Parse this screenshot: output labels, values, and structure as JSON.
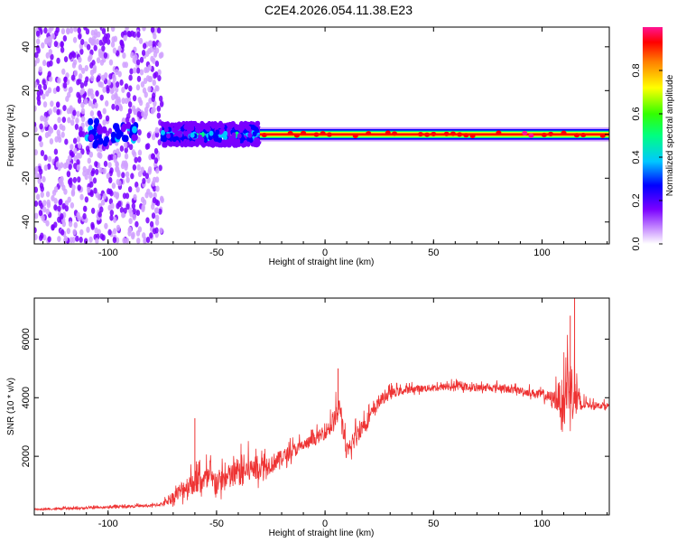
{
  "title": "C2E4.2026.054.11.38.E23",
  "chart_data": [
    {
      "type": "heatmap",
      "xlabel": "Height of straight line (km)",
      "ylabel": "Frequency (Hz)",
      "xlim": [
        -134,
        131
      ],
      "ylim": [
        -50,
        49
      ],
      "xticks": [
        -100,
        -50,
        0,
        50,
        100
      ],
      "yticks": [
        -40,
        -20,
        0,
        20,
        40
      ],
      "colorbar": {
        "label": "Normalized spectral amplitude",
        "range": [
          0,
          1
        ],
        "ticks": [
          0.0,
          0.2,
          0.4,
          0.6,
          0.8
        ],
        "colors": [
          "#ffffff",
          "#d0a0ff",
          "#7a00ff",
          "#0000ff",
          "#00c8ff",
          "#00ff80",
          "#33ff00",
          "#ffff00",
          "#ff7f00",
          "#ff0000",
          "#ff1493"
        ]
      },
      "description_regions": [
        {
          "x_from": -134,
          "x_to": -75,
          "freq_spread": 49,
          "level": "low, scattered noise"
        },
        {
          "x_from": -75,
          "x_to": -30,
          "freq_spread": 5,
          "level": "medium"
        },
        {
          "x_from": -30,
          "x_to": 131,
          "freq_spread": 1.5,
          "level": "high, concentrated near 0 Hz"
        }
      ]
    },
    {
      "type": "line",
      "xlabel": "Height of straight line (km)",
      "ylabel": "SNR (10 * v/v)",
      "xlim": [
        -134,
        131
      ],
      "ylim": [
        0,
        7400
      ],
      "xticks": [
        -100,
        -50,
        0,
        50,
        100
      ],
      "yticks": [
        2000,
        4000,
        6000
      ],
      "series": [
        {
          "color": "#ee3333",
          "x": [
            -134,
            -120,
            -100,
            -90,
            -80,
            -75,
            -70,
            -65,
            -60,
            -55,
            -50,
            -45,
            -40,
            -35,
            -30,
            -25,
            -20,
            -15,
            -10,
            -5,
            0,
            3,
            5,
            7,
            10,
            15,
            20,
            25,
            30,
            40,
            50,
            60,
            70,
            80,
            90,
            100,
            105,
            108,
            110,
            112,
            115,
            118,
            120,
            125,
            131
          ],
          "values": [
            180,
            200,
            250,
            280,
            300,
            350,
            550,
            800,
            1000,
            1050,
            1000,
            1100,
            1300,
            1400,
            1500,
            1650,
            1850,
            2100,
            2300,
            2500,
            2750,
            3000,
            3200,
            3600,
            1900,
            2700,
            3200,
            3800,
            4100,
            4250,
            4300,
            4350,
            4300,
            4300,
            4200,
            4050,
            3900,
            3800,
            3600,
            4200,
            3800,
            3600,
            3750,
            3700,
            3700
          ],
          "noise": [
            60,
            80,
            100,
            100,
            120,
            150,
            500,
            900,
            1000,
            1100,
            1000,
            1100,
            1200,
            1100,
            1000,
            800,
            700,
            600,
            550,
            500,
            600,
            900,
            1000,
            900,
            800,
            800,
            700,
            500,
            400,
            300,
            300,
            300,
            300,
            300,
            300,
            400,
            600,
            1500,
            2000,
            2500,
            2500,
            800,
            300,
            250,
            250
          ],
          "peaks": [
            {
              "x": 115,
              "y": 7400
            },
            {
              "x": 113,
              "y": 6800
            },
            {
              "x": 6,
              "y": 5000
            },
            {
              "x": -60,
              "y": 3300
            }
          ]
        }
      ]
    }
  ]
}
